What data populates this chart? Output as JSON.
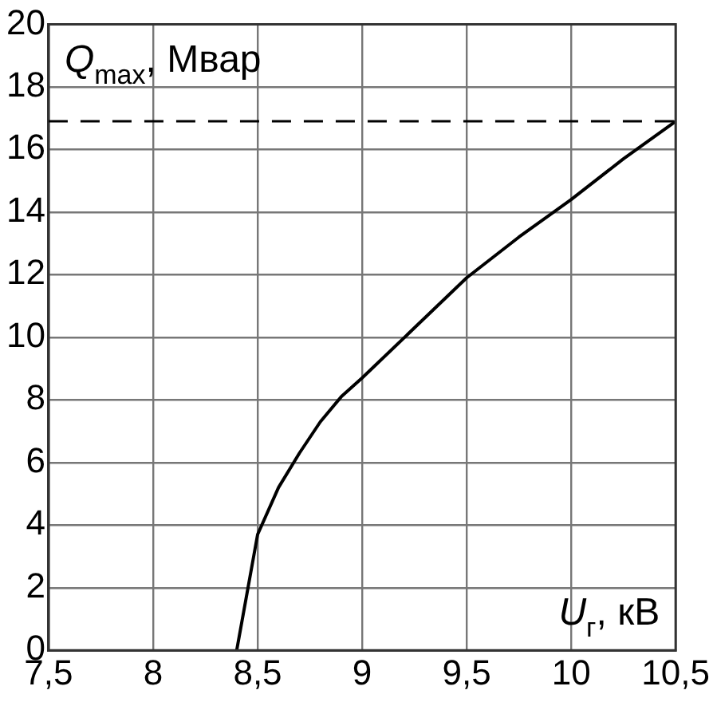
{
  "chart_data": {
    "type": "line",
    "xlabel": "U$_{г}$, кВ",
    "ylabel": "Q$_{max}$, Мвар",
    "series": [
      {
        "color": "#000000",
        "x": [
          8.4,
          8.5,
          8.6,
          8.7,
          8.8,
          8.9,
          9.0,
          9.25,
          9.5,
          9.75,
          10.0,
          10.25,
          10.5
        ],
        "values": [
          0,
          3.7,
          5.2,
          6.3,
          7.3,
          8.1,
          8.7,
          10.3,
          11.9,
          13.2,
          14.4,
          15.7,
          16.9
        ]
      }
    ],
    "xlim": [
      7.5,
      10.5
    ],
    "xticks": [
      {
        "value": 7.5,
        "label": "7,5"
      },
      8,
      {
        "value": 8.5,
        "label": "8,5"
      },
      9,
      {
        "value": 9.5,
        "label": "9,5"
      },
      10,
      {
        "value": 10.5,
        "label": "10,5"
      }
    ],
    "ylim": [
      0,
      20
    ],
    "yticks": [
      0,
      2,
      4,
      6,
      8,
      10,
      12,
      14,
      16,
      18,
      20
    ],
    "ref_lines": [
      {
        "axis": "y",
        "value": 16.9,
        "color": "#000000",
        "line_style": "dashed"
      }
    ],
    "grid": true,
    "legend": false,
    "marker": "none",
    "line_style": "solid"
  }
}
